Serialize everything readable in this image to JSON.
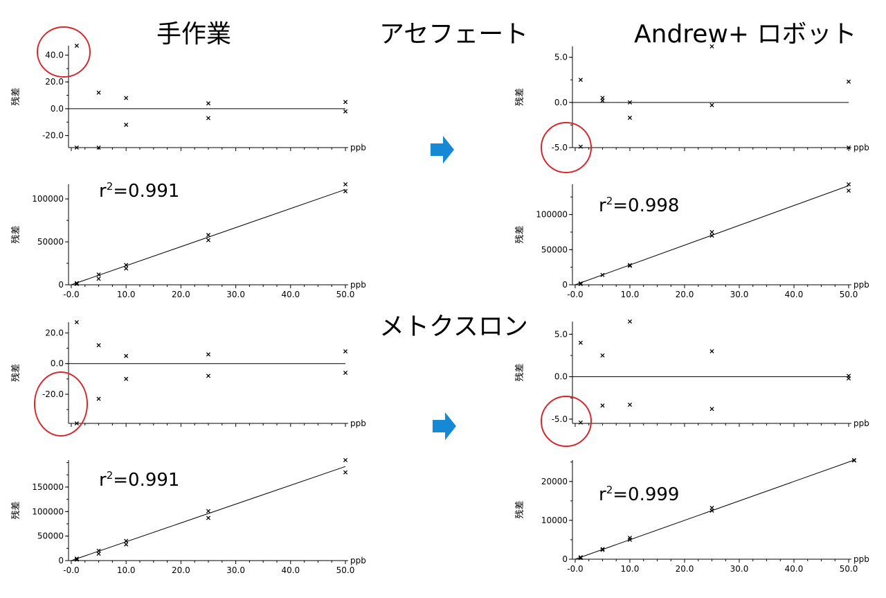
{
  "headings": {
    "manual": "手作業",
    "robot": "Andrew+ ロボット",
    "compound1": "アセフェート",
    "compound2": "メトクスロン"
  },
  "colors": {
    "arrow": "#1589d6",
    "circle": "#d6262a",
    "axis": "#000000"
  },
  "charts": [
    {
      "id": "acephate-manual-residual",
      "ylabel": "残差",
      "x_unit": "ppb",
      "r2_label": "",
      "show_x_ticklabels": false
    },
    {
      "id": "acephate-manual-calibration",
      "ylabel": "残差",
      "x_unit": "ppb",
      "r2_label": "=0.991",
      "show_x_ticklabels": true
    },
    {
      "id": "acephate-robot-residual",
      "ylabel": "残差",
      "x_unit": "ppb",
      "r2_label": "",
      "show_x_ticklabels": false
    },
    {
      "id": "acephate-robot-calibration",
      "ylabel": "残差",
      "x_unit": "ppb",
      "r2_label": "=0.998",
      "show_x_ticklabels": true
    },
    {
      "id": "metoxuron-manual-residual",
      "ylabel": "残差",
      "x_unit": "ppb",
      "r2_label": "",
      "show_x_ticklabels": false
    },
    {
      "id": "metoxuron-manual-calibration",
      "ylabel": "残差",
      "x_unit": "ppb",
      "r2_label": "=0.991",
      "show_x_ticklabels": true
    },
    {
      "id": "metoxuron-robot-residual",
      "ylabel": "残差",
      "x_unit": "ppb",
      "r2_label": "",
      "show_x_ticklabels": false
    },
    {
      "id": "metoxuron-robot-calibration",
      "ylabel": "残差",
      "x_unit": "ppb",
      "r2_label": "=0.999",
      "show_x_ticklabels": true
    }
  ],
  "chart_data": [
    {
      "type": "scatter",
      "title": "",
      "xlabel": "ppb",
      "ylabel": "残差",
      "xlim": [
        -0.5,
        50.5
      ],
      "ylim": [
        -29,
        47
      ],
      "yticks": [
        -20,
        0,
        20,
        40
      ],
      "ytick_labels": [
        "-20.0",
        "0.0",
        "20.0",
        "40.0"
      ],
      "reference_line_y": 0,
      "points": [
        [
          1,
          47
        ],
        [
          1,
          -29
        ],
        [
          5,
          12
        ],
        [
          5,
          -29
        ],
        [
          10,
          8
        ],
        [
          10,
          -12
        ],
        [
          25,
          4
        ],
        [
          25,
          -7
        ],
        [
          50,
          5
        ],
        [
          50,
          -2
        ]
      ]
    },
    {
      "type": "scatter",
      "title": "",
      "xlabel": "ppb",
      "ylabel": "残差",
      "annotation": "r²=0.991",
      "xlim": [
        -0.5,
        50.5
      ],
      "ylim": [
        0,
        117000
      ],
      "xticks": [
        0,
        10,
        20,
        30,
        40,
        50
      ],
      "xtick_labels": [
        "-0.0",
        "10.0",
        "20.0",
        "30.0",
        "40.0",
        "50.0"
      ],
      "yticks": [
        0,
        50000,
        100000
      ],
      "ytick_labels": [
        "0",
        "50000",
        "100000"
      ],
      "fit_line": [
        [
          0,
          0
        ],
        [
          50,
          111000
        ]
      ],
      "points": [
        [
          1,
          2000
        ],
        [
          1,
          1000
        ],
        [
          5,
          12000
        ],
        [
          5,
          7000
        ],
        [
          10,
          23000
        ],
        [
          10,
          19000
        ],
        [
          25,
          58000
        ],
        [
          25,
          52000
        ],
        [
          50,
          117000
        ],
        [
          50,
          109000
        ]
      ]
    },
    {
      "type": "scatter",
      "title": "",
      "xlabel": "ppb",
      "ylabel": "残差",
      "xlim": [
        -0.5,
        50.5
      ],
      "ylim": [
        -5,
        6.2
      ],
      "yticks": [
        -5,
        0,
        5
      ],
      "ytick_labels": [
        "-5.0",
        "0.0",
        "5.0"
      ],
      "reference_line_y": 0,
      "points": [
        [
          1,
          2.5
        ],
        [
          1,
          -4.9
        ],
        [
          5,
          0.5
        ],
        [
          5,
          0.2
        ],
        [
          10,
          0
        ],
        [
          10,
          -1.7
        ],
        [
          25,
          6.2
        ],
        [
          25,
          -0.3
        ],
        [
          50,
          2.3
        ],
        [
          50,
          -5
        ]
      ]
    },
    {
      "type": "scatter",
      "title": "",
      "xlabel": "ppb",
      "ylabel": "残差",
      "annotation": "r²=0.998",
      "xlim": [
        -0.5,
        50.5
      ],
      "ylim": [
        0,
        143000
      ],
      "xticks": [
        0,
        10,
        20,
        30,
        40,
        50
      ],
      "xtick_labels": [
        "-0.0",
        "10.0",
        "20.0",
        "30.0",
        "40.0",
        "50.0"
      ],
      "yticks": [
        0,
        50000,
        100000
      ],
      "ytick_labels": [
        "0",
        "50000",
        "100000"
      ],
      "fit_line": [
        [
          0,
          0
        ],
        [
          50,
          141000
        ]
      ],
      "points": [
        [
          1,
          2000
        ],
        [
          1,
          1000
        ],
        [
          5,
          14000
        ],
        [
          10,
          28000
        ],
        [
          10,
          27000
        ],
        [
          25,
          75000
        ],
        [
          25,
          70000
        ],
        [
          50,
          143000
        ],
        [
          50,
          134000
        ]
      ]
    },
    {
      "type": "scatter",
      "title": "",
      "xlabel": "ppb",
      "ylabel": "残差",
      "xlim": [
        -0.5,
        50.5
      ],
      "ylim": [
        -39,
        27
      ],
      "yticks": [
        -20,
        0,
        20
      ],
      "ytick_labels": [
        "-20.0",
        "0.0",
        "20.0"
      ],
      "reference_line_y": 0,
      "points": [
        [
          1,
          27
        ],
        [
          1,
          -39
        ],
        [
          5,
          12
        ],
        [
          5,
          -23
        ],
        [
          10,
          5
        ],
        [
          10,
          -10
        ],
        [
          25,
          6
        ],
        [
          25,
          -8
        ],
        [
          50,
          8
        ],
        [
          50,
          -6
        ]
      ]
    },
    {
      "type": "scatter",
      "title": "",
      "xlabel": "ppb",
      "ylabel": "残差",
      "annotation": "r²=0.991",
      "xlim": [
        -0.5,
        50.5
      ],
      "ylim": [
        0,
        205000
      ],
      "xticks": [
        0,
        10,
        20,
        30,
        40,
        50
      ],
      "xtick_labels": [
        "-0.0",
        "10.0",
        "20.0",
        "30.0",
        "40.0",
        "50.0"
      ],
      "yticks": [
        0,
        50000,
        100000,
        150000
      ],
      "ytick_labels": [
        "0",
        "50000",
        "100000",
        "150000"
      ],
      "fit_line": [
        [
          0,
          0
        ],
        [
          50,
          192000
        ]
      ],
      "points": [
        [
          1,
          4000
        ],
        [
          1,
          2000
        ],
        [
          5,
          20000
        ],
        [
          5,
          14000
        ],
        [
          10,
          40000
        ],
        [
          10,
          33000
        ],
        [
          25,
          101000
        ],
        [
          25,
          87000
        ],
        [
          50,
          205000
        ],
        [
          50,
          180000
        ]
      ]
    },
    {
      "type": "scatter",
      "title": "",
      "xlabel": "ppb",
      "ylabel": "残差",
      "xlim": [
        -0.5,
        50.5
      ],
      "ylim": [
        -5.5,
        6.5
      ],
      "yticks": [
        -5,
        0,
        5
      ],
      "ytick_labels": [
        "-5.0",
        "0.0",
        "5.0"
      ],
      "reference_line_y": 0,
      "points": [
        [
          1,
          4
        ],
        [
          1,
          -5.4
        ],
        [
          5,
          2.5
        ],
        [
          5,
          -3.4
        ],
        [
          10,
          6.5
        ],
        [
          10,
          -3.3
        ],
        [
          25,
          3
        ],
        [
          25,
          -3.8
        ],
        [
          50,
          0.1
        ],
        [
          50,
          -0.2
        ]
      ]
    },
    {
      "type": "scatter",
      "title": "",
      "xlabel": "ppb",
      "ylabel": "残差",
      "annotation": "r²=0.999",
      "xlim": [
        -0.5,
        50.5
      ],
      "ylim": [
        0,
        25500
      ],
      "xticks": [
        0,
        10,
        20,
        30,
        40,
        50
      ],
      "xtick_labels": [
        "-0.0",
        "10.0",
        "20.0",
        "30.0",
        "40.0",
        "50.0"
      ],
      "yticks": [
        0,
        10000,
        20000
      ],
      "ytick_labels": [
        "0",
        "10000",
        "20000"
      ],
      "fit_line": [
        [
          0,
          0
        ],
        [
          51,
          25500
        ]
      ],
      "points": [
        [
          1,
          500
        ],
        [
          1,
          300
        ],
        [
          5,
          2600
        ],
        [
          5,
          2400
        ],
        [
          10,
          5500
        ],
        [
          10,
          5000
        ],
        [
          25,
          13200
        ],
        [
          25,
          12500
        ],
        [
          51,
          25500
        ],
        [
          51,
          25400
        ]
      ]
    }
  ]
}
